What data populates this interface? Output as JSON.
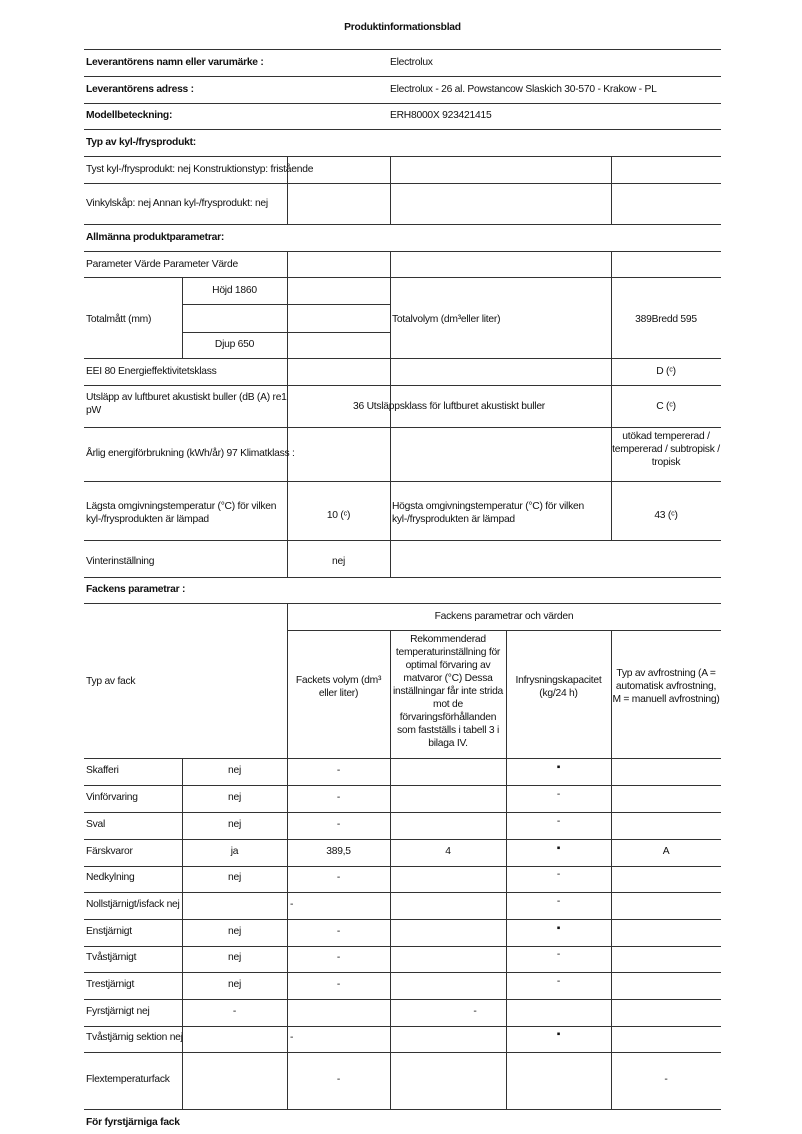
{
  "title": "Produktinformationsblad",
  "supplier": {
    "name_label": "Leverantörens namn eller varumärke :",
    "name_value": "Electrolux",
    "address_label": "Leverantörens adress :",
    "address_value": "Electrolux - 26 al. Powstancow Slaskich 30-570 - Krakow - PL",
    "model_label": "Modellbeteckning:",
    "model_value": "ERH8000X 923421415"
  },
  "product_type": {
    "heading": "Typ av kyl-/frysprodukt:",
    "row1": "Tyst kyl-/frysprodukt: nej Konstruktionstyp: fristående",
    "row2": "Vinkylskåp: nej Annan kyl-/frysprodukt: nej"
  },
  "general": {
    "heading": "Allmänna produktparametrar:",
    "param_header": "Parameter Värde Parameter Värde",
    "dimensions_label": "Totalmått (mm)",
    "height": "Höjd 1860",
    "depth": "Djup 650",
    "total_volume_label": "Totalvolym (dm³eller liter)",
    "total_volume_value": "389Bredd 595",
    "eei": "EEI 80 Energieffektivitetsklass",
    "energy_class": "D (ᶜ)",
    "noise_label": "Utsläpp av luftburet akustiskt buller (dB (A) re1 pW",
    "noise_value": "36 Utsläppsklass för luftburet akustiskt buller",
    "noise_class": "C (ᶜ)",
    "annual_energy": "Årlig energiförbrukning (kWh/år) 97 Klimatklass :",
    "climate_class": "utökad tempererad / tempererad / subtropisk / tropisk",
    "min_temp_label": "Lägsta omgivningstemperatur (°C) för vilken kyl-/frysprodukten är lämpad",
    "min_temp_value": "10 (ᶜ)",
    "max_temp_label": "Högsta omgivningstemperatur (°C) för vilken kyl-/frysprodukten är lämpad",
    "max_temp_value": "43 (ᶜ)",
    "winter_label": "Vinterinställning",
    "winter_value": "nej"
  },
  "compartments": {
    "heading": "Fackens parametrar :",
    "group_header": "Fackens parametrar och värden",
    "type_header": "Typ av fack",
    "col_volume": "Fackets volym (dm³ eller liter)",
    "col_temperature": "Rekommenderad temperaturinställning för optimal förvaring av matvaror (°C) Dessa inställningar får inte strida mot de förvaringsförhållanden som fastställs i tabell 3 i bilaga IV.",
    "col_freezing": "Infrysningskapacitet (kg/24 h)",
    "col_defrost": "Typ av avfrostning (A = automatisk avfrostning, M = manuell avfrostning)",
    "rows": [
      {
        "name": "Skafferi",
        "value": "nej",
        "volume": "-",
        "temperature": "",
        "freezing": "▪",
        "defrost": ""
      },
      {
        "name": "Vinförvaring",
        "value": "nej",
        "volume": "-",
        "temperature": "",
        "freezing": "-",
        "defrost": ""
      },
      {
        "name": "Sval",
        "value": "nej",
        "volume": "-",
        "temperature": "",
        "freezing": "-",
        "defrost": ""
      },
      {
        "name": "Färskvaror",
        "value": "ja",
        "volume": "389,5",
        "temperature": "4",
        "freezing": "▪",
        "defrost": "A"
      },
      {
        "name": "Nedkylning",
        "value": "nej",
        "volume": "-",
        "temperature": "",
        "freezing": "-",
        "defrost": ""
      },
      {
        "name": "Nollstjärnigt/isfack nej",
        "value": "",
        "volume": "-",
        "temperature": "",
        "freezing": "-",
        "defrost": ""
      },
      {
        "name": "Enstjärnigt",
        "value": "nej",
        "volume": "-",
        "temperature": "",
        "freezing": "▪",
        "defrost": ""
      },
      {
        "name": "Tvåstjärnigt",
        "value": "nej",
        "volume": "-",
        "temperature": "",
        "freezing": "-",
        "defrost": ""
      },
      {
        "name": "Trestjärnigt",
        "value": "nej",
        "volume": "-",
        "temperature": "",
        "freezing": "-",
        "defrost": ""
      },
      {
        "name": "Fyrstjärnigt nej",
        "value": "-",
        "volume": "",
        "temperature": "-",
        "freezing": "",
        "defrost": ""
      },
      {
        "name": "Tvåstjärnig sektion nej",
        "value": "",
        "volume": "-",
        "temperature": "",
        "freezing": "▪",
        "defrost": ""
      },
      {
        "name": "Flextemperaturfack",
        "value": "",
        "volume": "-",
        "temperature": "",
        "freezing": "",
        "defrost": "-"
      }
    ]
  },
  "footer_heading": "För fyrstjärniga fack"
}
